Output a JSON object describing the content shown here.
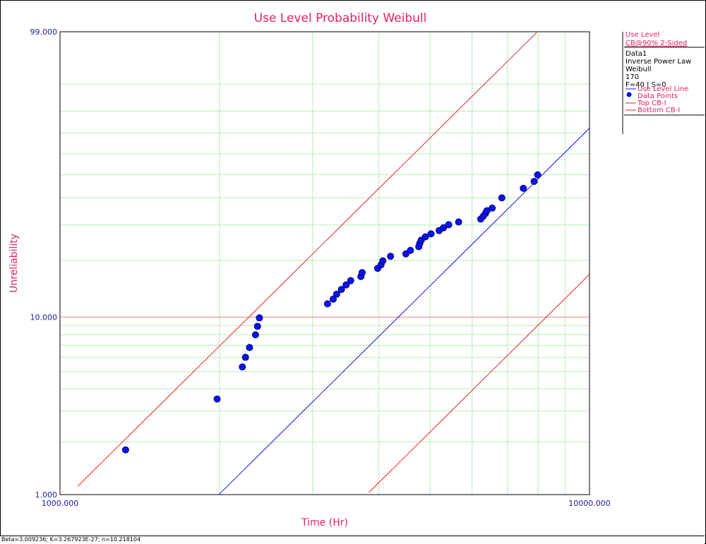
{
  "chart_data": {
    "type": "scatter",
    "title": "Use Level Probability Weibull",
    "xlabel": "Time (Hr)",
    "ylabel": "Unreliability",
    "x_scale": "log",
    "y_scale": "weibull",
    "xlim": [
      1000,
      10000
    ],
    "ylim": [
      1,
      99
    ],
    "x_tick_labels": [
      "1000.000",
      "10000.000"
    ],
    "y_tick_labels": [
      "1.000",
      "10.000",
      "99.000"
    ],
    "grid": true,
    "legend_position": "right",
    "legend": {
      "header": [
        "Use Level",
        "CB@90% 2-Sided"
      ],
      "info": [
        "Data1",
        "Inverse Power Law",
        "Weibull",
        "170",
        "F=40 | S=0"
      ],
      "items": [
        {
          "label": "Use Level Line",
          "kind": "line",
          "color": "#1010e0"
        },
        {
          "label": "Data Points",
          "kind": "marker",
          "color": "#0a14e6"
        },
        {
          "label": "Top CB-I",
          "kind": "line",
          "color": "#ee2222"
        },
        {
          "label": "Bottom CB-I",
          "kind": "line",
          "color": "#ee2222"
        }
      ]
    },
    "series": [
      {
        "name": "Data Points",
        "type": "scatter",
        "color": "#0a14e6",
        "points": [
          [
            1330,
            1.8
          ],
          [
            1980,
            3.5
          ],
          [
            2210,
            5.3
          ],
          [
            2240,
            6.0
          ],
          [
            2280,
            6.8
          ],
          [
            2340,
            8.0
          ],
          [
            2360,
            8.9
          ],
          [
            2380,
            9.9
          ],
          [
            3200,
            11.8
          ],
          [
            3280,
            12.5
          ],
          [
            3330,
            13.3
          ],
          [
            3400,
            14.1
          ],
          [
            3470,
            14.9
          ],
          [
            3540,
            15.7
          ],
          [
            3700,
            16.5
          ],
          [
            3720,
            17.3
          ],
          [
            3980,
            18.2
          ],
          [
            4040,
            19.0
          ],
          [
            4070,
            19.9
          ],
          [
            4210,
            21.0
          ],
          [
            4500,
            21.6
          ],
          [
            4590,
            22.5
          ],
          [
            4760,
            23.5
          ],
          [
            4780,
            24.4
          ],
          [
            4810,
            25.3
          ],
          [
            4900,
            26.3
          ],
          [
            5020,
            27.2
          ],
          [
            5200,
            28.2
          ],
          [
            5300,
            29.1
          ],
          [
            5420,
            30.1
          ],
          [
            5660,
            31.0
          ],
          [
            6230,
            32.0
          ],
          [
            6300,
            33.0
          ],
          [
            6360,
            34.0
          ],
          [
            6400,
            35.0
          ],
          [
            6550,
            36.0
          ],
          [
            6830,
            40.0
          ],
          [
            7500,
            44.0
          ],
          [
            7860,
            47.0
          ],
          [
            7980,
            50.0
          ]
        ]
      },
      {
        "name": "Use Level Line",
        "type": "line",
        "color": "#1010e0",
        "beta": 3.009236,
        "eta": 9200
      },
      {
        "name": "Top CB-I",
        "type": "line",
        "color": "#ee2222",
        "beta": 3.009236,
        "eta": 4800
      },
      {
        "name": "Bottom CB-I",
        "type": "line",
        "color": "#ee2222",
        "beta": 3.009236,
        "eta": 17500
      }
    ]
  },
  "footer": "Beta=3.009236; K=3.267923E-27; n=10.218104"
}
